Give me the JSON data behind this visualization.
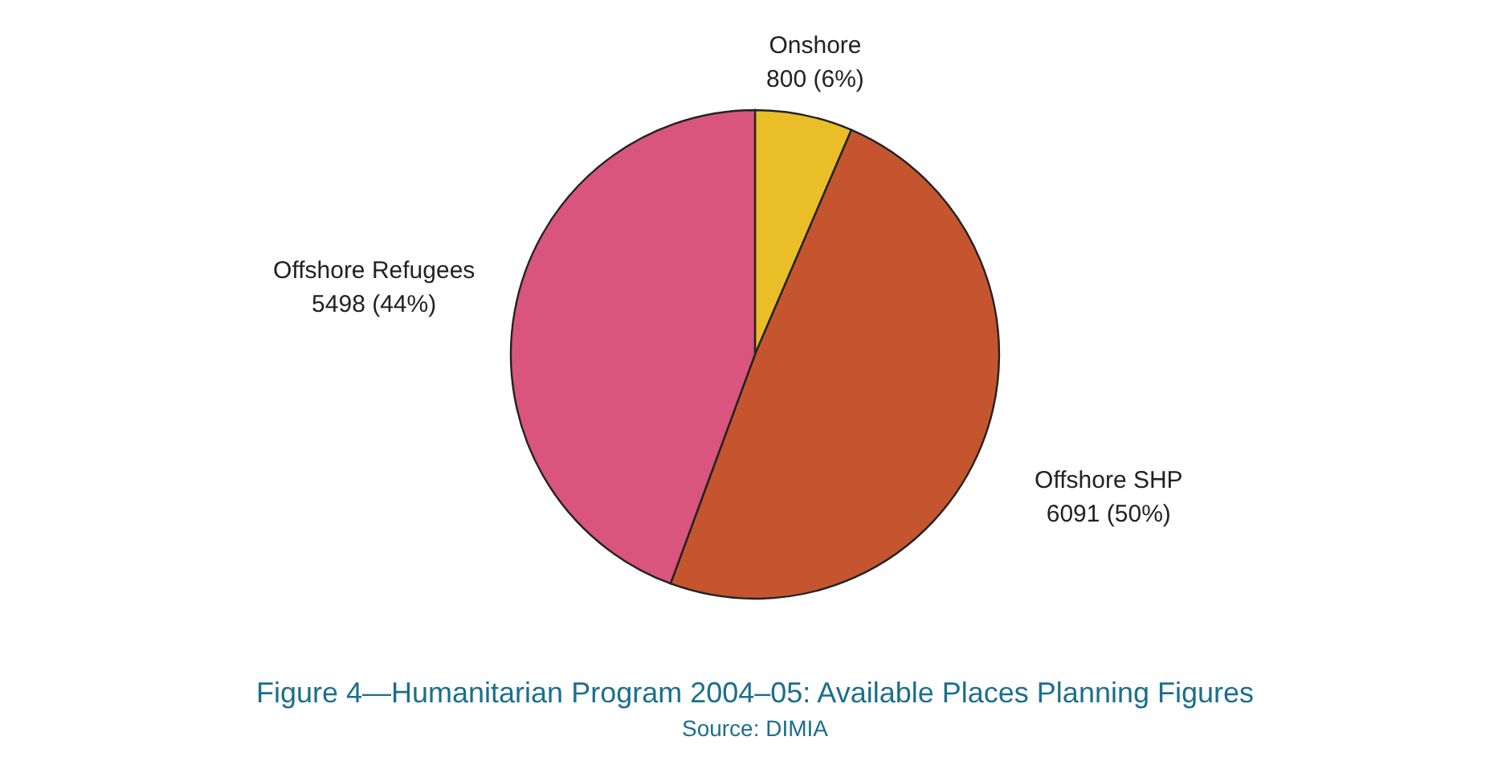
{
  "chart_data": {
    "type": "pie",
    "title": "Figure 4—Humanitarian Program 2004–05: Available Places Planning Figures",
    "annotations": [
      "Source: DIMIA"
    ],
    "categories": [
      "Onshore",
      "Offshore SHP",
      "Offshore Refugees"
    ],
    "values": [
      800,
      6091,
      5498
    ],
    "value_labels": [
      "800 (6%)",
      "6091 (50%)",
      "5498 (44%)"
    ],
    "colors": [
      "#e9be28",
      "#c4552f",
      "#d9557e"
    ],
    "legend": false
  }
}
